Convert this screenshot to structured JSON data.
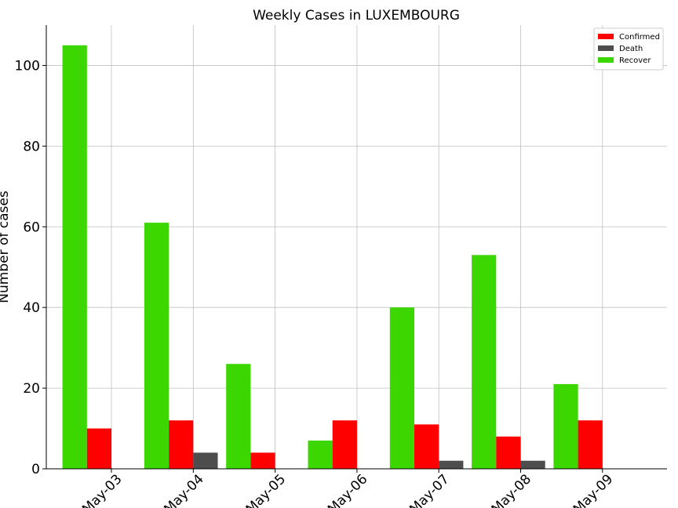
{
  "chart_data": {
    "type": "bar",
    "title": "Weekly Cases in LUXEMBOURG",
    "xlabel": "",
    "ylabel": "Number of cases",
    "categories": [
      "May-03",
      "May-04",
      "May-05",
      "May-06",
      "May-07",
      "May-08",
      "May-09"
    ],
    "series": [
      {
        "name": "Recover",
        "color": "#3cd600",
        "values": [
          105,
          61,
          26,
          7,
          40,
          53,
          21
        ]
      },
      {
        "name": "Confirmed",
        "color": "#ff0000",
        "values": [
          10,
          12,
          4,
          12,
          11,
          8,
          12
        ]
      },
      {
        "name": "Death",
        "color": "#4d4d4d",
        "values": [
          0,
          4,
          0,
          0,
          2,
          2,
          0
        ]
      }
    ],
    "legend_order": [
      "Confirmed",
      "Death",
      "Recover"
    ],
    "ylim": [
      0,
      110
    ],
    "yticks": [
      0,
      20,
      40,
      60,
      80,
      100
    ],
    "grid": true,
    "legend_position": "top-right"
  }
}
